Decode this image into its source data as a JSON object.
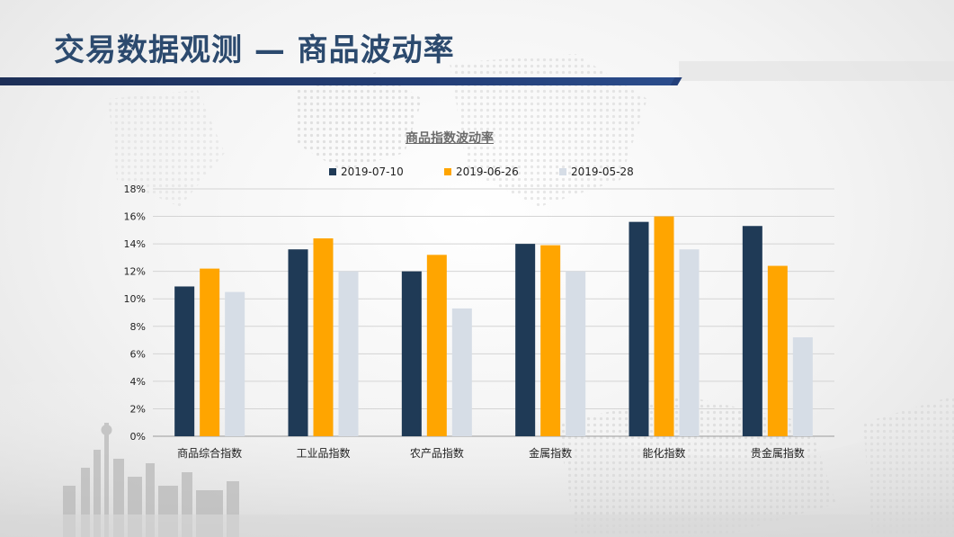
{
  "page": {
    "title": "交易数据观测 — 商品波动率"
  },
  "colors": {
    "title": "#2c4a6e",
    "title_bar": "#1f3460",
    "series": [
      "#1f3a56",
      "#ffa500",
      "#d6dde6"
    ]
  },
  "chart_data": {
    "type": "bar",
    "title": "商品指数波动率",
    "categories": [
      "商品综合指数",
      "工业品指数",
      "农产品指数",
      "金属指数",
      "能化指数",
      "贵金属指数"
    ],
    "series": [
      {
        "name": "2019-07-10",
        "values": [
          10.9,
          13.6,
          12.0,
          14.0,
          15.6,
          15.3
        ]
      },
      {
        "name": "2019-06-26",
        "values": [
          12.2,
          14.4,
          13.2,
          13.9,
          16.0,
          12.4
        ]
      },
      {
        "name": "2019-05-28",
        "values": [
          10.5,
          12.0,
          9.3,
          12.0,
          13.6,
          7.2
        ]
      }
    ],
    "ylim": [
      0,
      18
    ],
    "yticks": [
      "0%",
      "2%",
      "4%",
      "6%",
      "8%",
      "10%",
      "12%",
      "14%",
      "16%",
      "18%"
    ],
    "ytick_values": [
      0,
      2,
      4,
      6,
      8,
      10,
      12,
      14,
      16,
      18
    ],
    "grid": true,
    "legend_position": "top"
  }
}
